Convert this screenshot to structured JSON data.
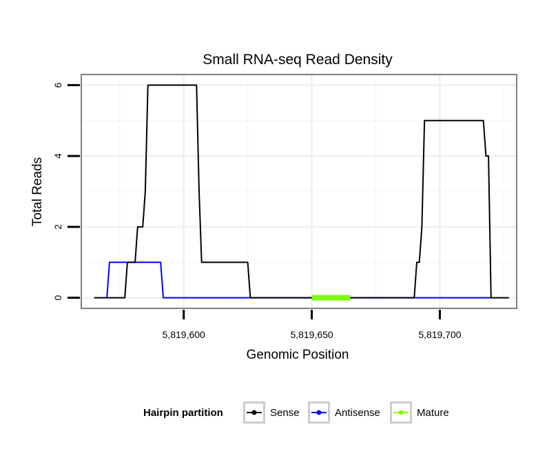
{
  "chart_data": {
    "type": "line",
    "title": "Small RNA-seq Read Density",
    "xlabel": "Genomic Position",
    "ylabel": "Total Reads",
    "xlim": [
      5819560,
      5819730
    ],
    "ylim": [
      -0.3,
      6.3
    ],
    "x_ticks": [
      5819600,
      5819650,
      5819700
    ],
    "x_tick_labels": [
      "5,819,600",
      "5,819,650",
      "5,819,700"
    ],
    "y_ticks": [
      0,
      2,
      4,
      6
    ],
    "y_tick_labels": [
      "0",
      "2",
      "4",
      "6"
    ],
    "grid": true,
    "legend_title": "Hairpin partition",
    "legend_position": "bottom",
    "series": [
      {
        "name": "Sense",
        "color": "#000000",
        "points": [
          [
            5819565,
            0
          ],
          [
            5819577,
            0
          ],
          [
            5819578,
            1
          ],
          [
            5819581,
            1
          ],
          [
            5819582,
            2
          ],
          [
            5819584,
            2
          ],
          [
            5819585,
            3
          ],
          [
            5819586,
            6
          ],
          [
            5819605,
            6
          ],
          [
            5819606,
            3
          ],
          [
            5819607,
            1
          ],
          [
            5819625,
            1
          ],
          [
            5819626,
            0
          ],
          [
            5819690,
            0
          ],
          [
            5819691,
            1
          ],
          [
            5819692,
            1
          ],
          [
            5819693,
            2
          ],
          [
            5819694,
            5
          ],
          [
            5819717,
            5
          ],
          [
            5819718,
            4
          ],
          [
            5819719,
            4
          ],
          [
            5819720,
            0
          ],
          [
            5819727,
            0
          ]
        ]
      },
      {
        "name": "Antisense",
        "color": "#0000ff",
        "points": [
          [
            5819570,
            0
          ],
          [
            5819571,
            1
          ],
          [
            5819591,
            1
          ],
          [
            5819592,
            0
          ],
          [
            5819720,
            0
          ]
        ]
      },
      {
        "name": "Mature",
        "color": "#7fff00",
        "points": [
          [
            5819650,
            0
          ],
          [
            5819665,
            0
          ]
        ]
      }
    ]
  }
}
